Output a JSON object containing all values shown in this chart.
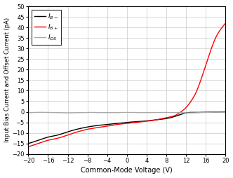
{
  "title": "",
  "xlabel": "Common-Mode Voltage (V)",
  "ylabel": "Input Bias Current and Offset Current (pA)",
  "xlim": [
    -20,
    20
  ],
  "ylim": [
    -20,
    50
  ],
  "xticks": [
    -20,
    -16,
    -12,
    -8,
    -4,
    0,
    4,
    8,
    12,
    16,
    20
  ],
  "yticks": [
    -20,
    -15,
    -10,
    -5,
    0,
    5,
    10,
    15,
    20,
    25,
    30,
    35,
    40,
    45,
    50
  ],
  "legend_colors": [
    "black",
    "red",
    "#aaaaaa"
  ],
  "background_color": "#ffffff",
  "grid_color": "#c8c8c8",
  "ib_minus_points": [
    [
      -20,
      -15.0
    ],
    [
      -18,
      -13.5
    ],
    [
      -16,
      -12.0
    ],
    [
      -14,
      -11.0
    ],
    [
      -12,
      -9.5
    ],
    [
      -10,
      -8.2
    ],
    [
      -8,
      -7.2
    ],
    [
      -6,
      -6.5
    ],
    [
      -4,
      -6.0
    ],
    [
      -2,
      -5.5
    ],
    [
      0,
      -5.0
    ],
    [
      2,
      -4.7
    ],
    [
      4,
      -4.3
    ],
    [
      6,
      -3.8
    ],
    [
      8,
      -3.2
    ],
    [
      10,
      -2.0
    ],
    [
      12,
      -0.5
    ],
    [
      14,
      -0.3
    ],
    [
      16,
      -0.2
    ],
    [
      18,
      -0.1
    ],
    [
      20,
      0.0
    ]
  ],
  "ib_plus_points": [
    [
      -20,
      -16.5
    ],
    [
      -18,
      -15.0
    ],
    [
      -16,
      -13.5
    ],
    [
      -14,
      -12.5
    ],
    [
      -12,
      -11.0
    ],
    [
      -10,
      -9.5
    ],
    [
      -8,
      -8.3
    ],
    [
      -6,
      -7.5
    ],
    [
      -4,
      -6.8
    ],
    [
      -2,
      -6.0
    ],
    [
      0,
      -5.5
    ],
    [
      2,
      -5.0
    ],
    [
      4,
      -4.5
    ],
    [
      6,
      -3.8
    ],
    [
      8,
      -2.8
    ],
    [
      10,
      -1.5
    ],
    [
      11,
      0.0
    ],
    [
      12,
      2.0
    ],
    [
      13,
      5.0
    ],
    [
      14,
      9.0
    ],
    [
      15,
      15.0
    ],
    [
      16,
      22.0
    ],
    [
      17,
      29.0
    ],
    [
      18,
      35.0
    ],
    [
      19,
      39.0
    ],
    [
      20,
      42.0
    ]
  ],
  "ios_points": [
    [
      -20,
      -0.5
    ],
    [
      -16,
      -0.3
    ],
    [
      -12,
      -0.5
    ],
    [
      -8,
      -0.3
    ],
    [
      -4,
      -0.4
    ],
    [
      0,
      -0.3
    ],
    [
      4,
      -0.4
    ],
    [
      8,
      -0.3
    ],
    [
      12,
      -0.5
    ],
    [
      16,
      -0.3
    ],
    [
      20,
      -0.2
    ]
  ]
}
